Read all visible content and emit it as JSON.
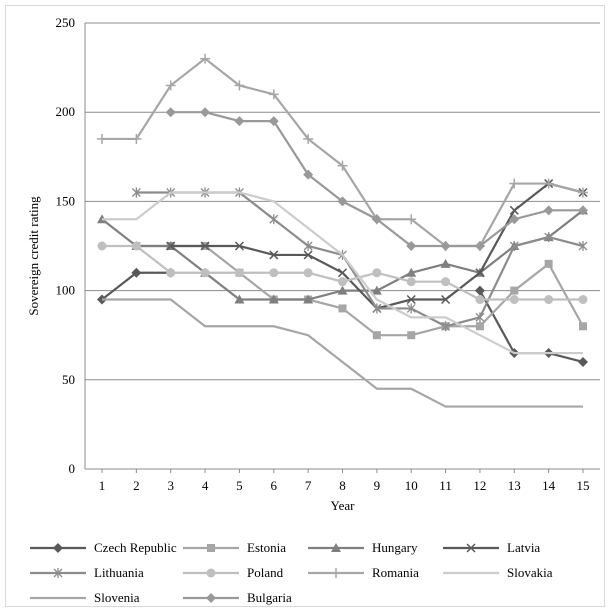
{
  "chart_data": {
    "type": "line",
    "title": "",
    "xlabel": "Year",
    "ylabel": "Sovereign credit rating",
    "ylim": [
      0,
      250
    ],
    "yticks": [
      0,
      50,
      100,
      150,
      200,
      250
    ],
    "x": [
      1,
      2,
      3,
      4,
      5,
      6,
      7,
      8,
      9,
      10,
      11,
      12,
      13,
      14,
      15
    ],
    "grid": "horizontal",
    "legend_position": "bottom",
    "series": [
      {
        "name": "Czech Republic",
        "color": "#595959",
        "marker": "diamond",
        "values": [
          95,
          110,
          110,
          null,
          null,
          null,
          null,
          null,
          null,
          null,
          null,
          100,
          65,
          65,
          60
        ],
        "connect": [
          [
            1,
            3
          ],
          [
            12,
            15
          ]
        ]
      },
      {
        "name": "Estonia",
        "color": "#a6a6a6",
        "marker": "square",
        "values": [
          null,
          125,
          125,
          125,
          110,
          95,
          95,
          90,
          75,
          75,
          80,
          80,
          100,
          115,
          80
        ]
      },
      {
        "name": "Hungary",
        "color": "#7f7f7f",
        "marker": "triangle",
        "values": [
          140,
          125,
          125,
          110,
          95,
          95,
          95,
          100,
          100,
          110,
          115,
          110,
          125,
          130,
          145
        ]
      },
      {
        "name": "Latvia",
        "color": "#595959",
        "marker": "x",
        "values": [
          null,
          null,
          125,
          125,
          125,
          120,
          120,
          110,
          90,
          95,
          95,
          110,
          145,
          160,
          155
        ]
      },
      {
        "name": "Lithuania",
        "color": "#8c8c8c",
        "marker": "asterisk",
        "values": [
          null,
          155,
          155,
          155,
          155,
          140,
          125,
          120,
          90,
          90,
          80,
          85,
          125,
          130,
          125
        ]
      },
      {
        "name": "Poland",
        "color": "#bfbfbf",
        "marker": "circle",
        "values": [
          125,
          125,
          110,
          110,
          110,
          110,
          110,
          105,
          110,
          105,
          105,
          95,
          95,
          95,
          95
        ]
      },
      {
        "name": "Romania",
        "color": "#a6a6a6",
        "marker": "plus",
        "values": [
          185,
          185,
          215,
          230,
          215,
          210,
          185,
          170,
          140,
          140,
          125,
          125,
          160,
          160,
          155
        ]
      },
      {
        "name": "Slovakia",
        "color": "#cccccc",
        "marker": "none",
        "values": [
          140,
          140,
          155,
          155,
          155,
          150,
          135,
          120,
          95,
          85,
          85,
          75,
          65,
          65,
          65
        ]
      },
      {
        "name": "Slovenia",
        "color": "#a6a6a6",
        "marker": "none",
        "values": [
          95,
          95,
          95,
          80,
          80,
          80,
          75,
          60,
          45,
          45,
          35,
          35,
          35,
          35,
          35
        ]
      },
      {
        "name": "Bulgaria",
        "color": "#999999",
        "marker": "diamond",
        "values": [
          null,
          null,
          200,
          200,
          195,
          195,
          165,
          150,
          140,
          125,
          125,
          125,
          140,
          145,
          145
        ]
      }
    ]
  }
}
